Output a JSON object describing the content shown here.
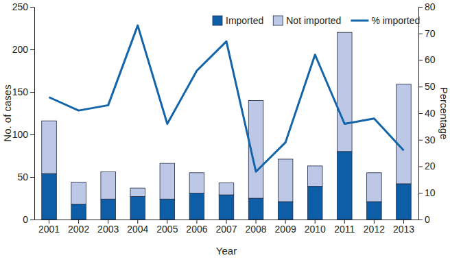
{
  "chart_data": {
    "type": "bar",
    "stacked": true,
    "legend": "top",
    "x_label": "Year",
    "y_label": "No. of cases",
    "y2_label": "Percentage",
    "categories": [
      "2001",
      "2002",
      "2003",
      "2004",
      "2005",
      "2006",
      "2007",
      "2008",
      "2009",
      "2010",
      "2011",
      "2012",
      "2013"
    ],
    "series": [
      {
        "name": "Imported",
        "type": "bar",
        "color": "#0d5ea6",
        "values": [
          54,
          18,
          24,
          27,
          24,
          31,
          29,
          25,
          21,
          39,
          80,
          21,
          42
        ]
      },
      {
        "name": "Not imported",
        "type": "bar",
        "color": "#bcc8e6",
        "values": [
          62,
          26,
          32,
          10,
          42,
          24,
          14,
          115,
          50,
          24,
          140,
          34,
          117
        ]
      },
      {
        "name": "% imported",
        "type": "line",
        "axis": "y2",
        "color": "#1464aa",
        "values": [
          46,
          41,
          43,
          73,
          36,
          56,
          67,
          18,
          29,
          62,
          36,
          38,
          26
        ]
      }
    ],
    "ylim": [
      0,
      250
    ],
    "yticks": [
      0,
      50,
      100,
      150,
      200,
      250
    ],
    "y2lim": [
      0,
      80
    ],
    "y2ticks": [
      0,
      10,
      20,
      30,
      40,
      50,
      60,
      70,
      80
    ]
  }
}
